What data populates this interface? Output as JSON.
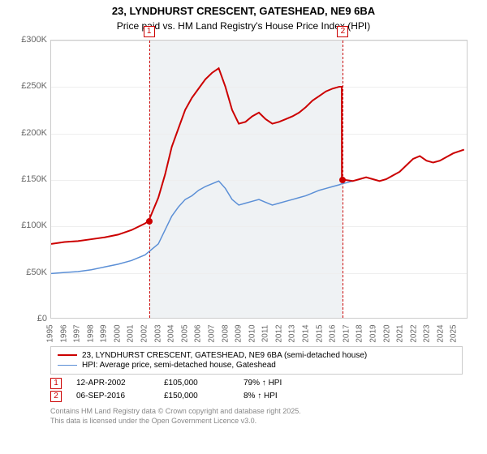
{
  "title_line1": "23, LYNDHURST CRESCENT, GATESHEAD, NE9 6BA",
  "title_line2": "Price paid vs. HM Land Registry's House Price Index (HPI)",
  "chart": {
    "type": "line",
    "background_color": "#ffffff",
    "grid_color": "#eeeeee",
    "axis_color": "#cccccc",
    "shade_color": "#e8ecf0",
    "y_axis": {
      "min": 0,
      "max": 300000,
      "step": 50000,
      "labels": [
        "£0",
        "£50K",
        "£100K",
        "£150K",
        "£200K",
        "£250K",
        "£300K"
      ]
    },
    "x_axis": {
      "min": 1995,
      "max": 2026,
      "labels": [
        "1995",
        "1996",
        "1997",
        "1998",
        "1999",
        "2000",
        "2001",
        "2002",
        "2003",
        "2004",
        "2005",
        "2006",
        "2007",
        "2008",
        "2009",
        "2010",
        "2011",
        "2012",
        "2013",
        "2014",
        "2015",
        "2016",
        "2017",
        "2018",
        "2019",
        "2020",
        "2021",
        "2022",
        "2023",
        "2024",
        "2025"
      ]
    },
    "shade": {
      "from_year": 2002.28,
      "to_year": 2016.68
    },
    "series": [
      {
        "name": "23, LYNDHURST CRESCENT, GATESHEAD, NE9 6BA (semi-detached house)",
        "color": "#cc0000",
        "width": 2,
        "data": [
          [
            1995,
            80000
          ],
          [
            1996,
            82000
          ],
          [
            1997,
            83000
          ],
          [
            1998,
            85000
          ],
          [
            1999,
            87000
          ],
          [
            2000,
            90000
          ],
          [
            2001,
            95000
          ],
          [
            2002,
            102000
          ],
          [
            2002.28,
            105000
          ],
          [
            2003,
            130000
          ],
          [
            2003.5,
            155000
          ],
          [
            2004,
            185000
          ],
          [
            2004.5,
            205000
          ],
          [
            2005,
            225000
          ],
          [
            2005.5,
            238000
          ],
          [
            2006,
            248000
          ],
          [
            2006.5,
            258000
          ],
          [
            2007,
            265000
          ],
          [
            2007.5,
            270000
          ],
          [
            2008,
            250000
          ],
          [
            2008.5,
            225000
          ],
          [
            2009,
            210000
          ],
          [
            2009.5,
            212000
          ],
          [
            2010,
            218000
          ],
          [
            2010.5,
            222000
          ],
          [
            2011,
            215000
          ],
          [
            2011.5,
            210000
          ],
          [
            2012,
            212000
          ],
          [
            2012.5,
            215000
          ],
          [
            2013,
            218000
          ],
          [
            2013.5,
            222000
          ],
          [
            2014,
            228000
          ],
          [
            2014.5,
            235000
          ],
          [
            2015,
            240000
          ],
          [
            2015.5,
            245000
          ],
          [
            2016,
            248000
          ],
          [
            2016.5,
            250000
          ],
          [
            2016.68,
            250000
          ],
          [
            2016.69,
            150000
          ],
          [
            2017,
            149000
          ],
          [
            2017.5,
            148000
          ],
          [
            2018,
            150000
          ],
          [
            2018.5,
            152000
          ],
          [
            2019,
            150000
          ],
          [
            2019.5,
            148000
          ],
          [
            2020,
            150000
          ],
          [
            2020.5,
            154000
          ],
          [
            2021,
            158000
          ],
          [
            2021.5,
            165000
          ],
          [
            2022,
            172000
          ],
          [
            2022.5,
            175000
          ],
          [
            2023,
            170000
          ],
          [
            2023.5,
            168000
          ],
          [
            2024,
            170000
          ],
          [
            2024.5,
            174000
          ],
          [
            2025,
            178000
          ],
          [
            2025.8,
            182000
          ]
        ]
      },
      {
        "name": "HPI: Average price, semi-detached house, Gateshead",
        "color": "#5b8fd6",
        "width": 1.5,
        "data": [
          [
            1995,
            48000
          ],
          [
            1996,
            49000
          ],
          [
            1997,
            50000
          ],
          [
            1998,
            52000
          ],
          [
            1999,
            55000
          ],
          [
            2000,
            58000
          ],
          [
            2001,
            62000
          ],
          [
            2002,
            68000
          ],
          [
            2003,
            80000
          ],
          [
            2003.5,
            95000
          ],
          [
            2004,
            110000
          ],
          [
            2004.5,
            120000
          ],
          [
            2005,
            128000
          ],
          [
            2005.5,
            132000
          ],
          [
            2006,
            138000
          ],
          [
            2006.5,
            142000
          ],
          [
            2007,
            145000
          ],
          [
            2007.5,
            148000
          ],
          [
            2008,
            140000
          ],
          [
            2008.5,
            128000
          ],
          [
            2009,
            122000
          ],
          [
            2009.5,
            124000
          ],
          [
            2010,
            126000
          ],
          [
            2010.5,
            128000
          ],
          [
            2011,
            125000
          ],
          [
            2011.5,
            122000
          ],
          [
            2012,
            124000
          ],
          [
            2012.5,
            126000
          ],
          [
            2013,
            128000
          ],
          [
            2013.5,
            130000
          ],
          [
            2014,
            132000
          ],
          [
            2014.5,
            135000
          ],
          [
            2015,
            138000
          ],
          [
            2015.5,
            140000
          ],
          [
            2016,
            142000
          ],
          [
            2016.5,
            144000
          ],
          [
            2016.68,
            145000
          ],
          [
            2017,
            146000
          ],
          [
            2017.5,
            148000
          ],
          [
            2018,
            150000
          ],
          [
            2018.5,
            152000
          ],
          [
            2019,
            150000
          ],
          [
            2019.5,
            148000
          ],
          [
            2020,
            150000
          ],
          [
            2020.5,
            154000
          ],
          [
            2021,
            158000
          ],
          [
            2021.5,
            165000
          ],
          [
            2022,
            172000
          ],
          [
            2022.5,
            175000
          ],
          [
            2023,
            170000
          ],
          [
            2023.5,
            168000
          ],
          [
            2024,
            170000
          ],
          [
            2024.5,
            174000
          ],
          [
            2025,
            178000
          ],
          [
            2025.8,
            182000
          ]
        ]
      }
    ],
    "markers": [
      {
        "n": "1",
        "year": 2002.28,
        "value": 105000,
        "color": "#cc0000"
      },
      {
        "n": "2",
        "year": 2016.68,
        "value": 150000,
        "color": "#cc0000"
      }
    ]
  },
  "legend": [
    {
      "color": "#cc0000",
      "width": 2,
      "label": "23, LYNDHURST CRESCENT, GATESHEAD, NE9 6BA (semi-detached house)"
    },
    {
      "color": "#5b8fd6",
      "width": 1.5,
      "label": "HPI: Average price, semi-detached house, Gateshead"
    }
  ],
  "sales": [
    {
      "n": "1",
      "color": "#cc0000",
      "date": "12-APR-2002",
      "price": "£105,000",
      "pct": "79% ↑ HPI"
    },
    {
      "n": "2",
      "color": "#cc0000",
      "date": "06-SEP-2016",
      "price": "£150,000",
      "pct": "8% ↑ HPI"
    }
  ],
  "footer_line1": "Contains HM Land Registry data © Crown copyright and database right 2025.",
  "footer_line2": "This data is licensed under the Open Government Licence v3.0."
}
